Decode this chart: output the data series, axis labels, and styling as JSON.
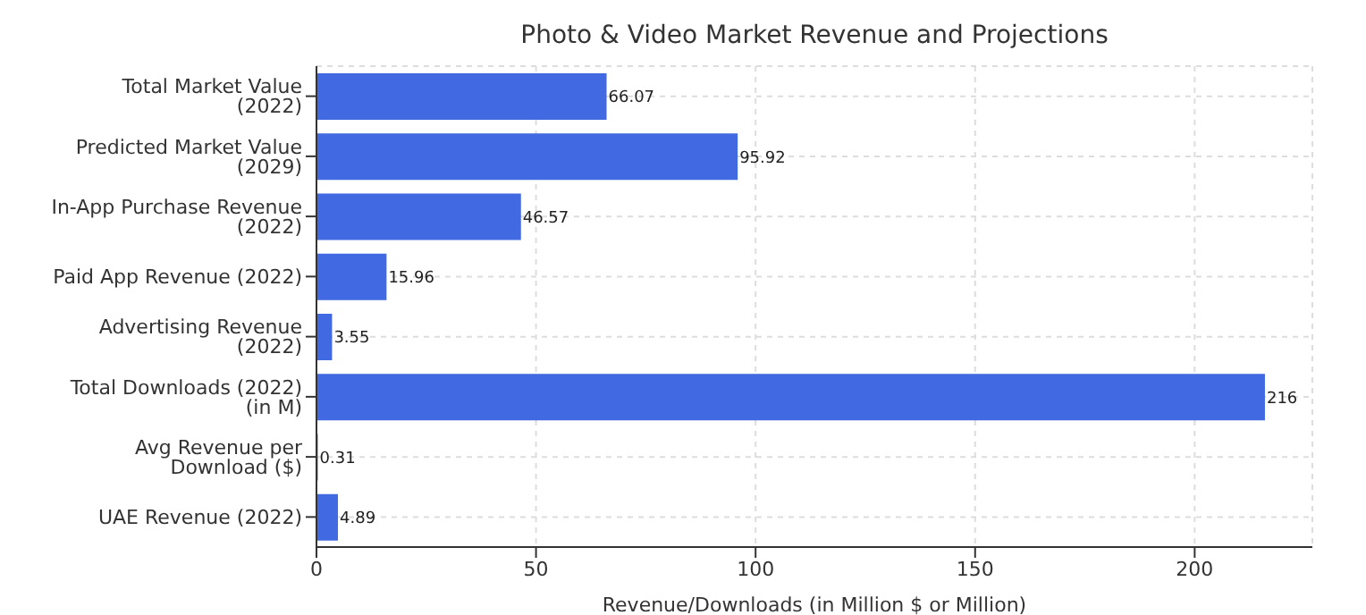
{
  "chart_data": {
    "type": "bar",
    "orientation": "horizontal",
    "title": "Photo & Video Market Revenue and Projections",
    "xlabel": "Revenue/Downloads (in Million $ or Million)",
    "categories": [
      "Total Market Value (2022)",
      "Predicted Market Value (2029)",
      "In-App Purchase Revenue (2022)",
      "Paid App Revenue (2022)",
      "Advertising Revenue (2022)",
      "Total Downloads (2022) (in M)",
      "Avg Revenue per Download ($)",
      "UAE Revenue (2022)"
    ],
    "values": [
      66.07,
      95.92,
      46.57,
      15.96,
      3.55,
      216,
      0.31,
      4.89
    ],
    "color": "#4169e1",
    "xlim": [
      0,
      226.8
    ],
    "xticks": [
      0,
      50,
      100,
      150,
      200
    ],
    "grid": true,
    "data_labels": true
  }
}
